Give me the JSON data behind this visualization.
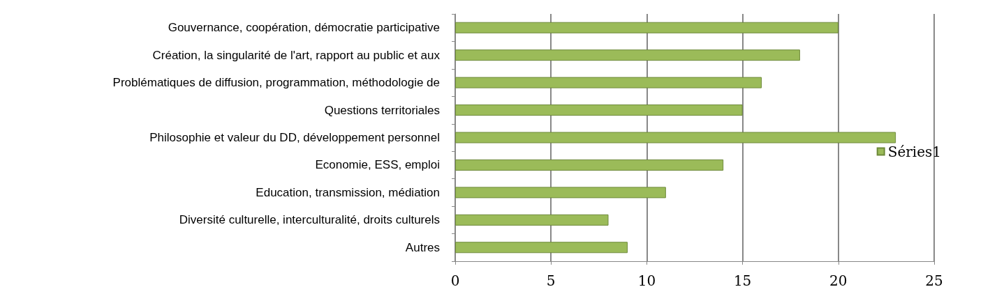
{
  "chart_data": {
    "type": "bar",
    "orientation": "horizontal",
    "categories": [
      "Gouvernance, coopération, démocratie participative",
      "Création, la singularité de l'art, rapport au public et aux",
      "Problématiques de diffusion, programmation, méthodologie de",
      "Questions territoriales",
      "Philosophie et valeur du DD, développement personnel",
      "Economie, ESS, emploi",
      "Education, transmission, médiation",
      "Diversité culturelle, interculturalité, droits culturels",
      "Autres"
    ],
    "series": [
      {
        "name": "Séries1",
        "color": "#9bbb59",
        "values": [
          20,
          18,
          16,
          15,
          23,
          14,
          11,
          8,
          9
        ]
      }
    ],
    "xlim": [
      0,
      25
    ],
    "xticks": [
      0,
      5,
      10,
      15,
      20,
      25
    ],
    "grid": "x",
    "legend": "right"
  }
}
